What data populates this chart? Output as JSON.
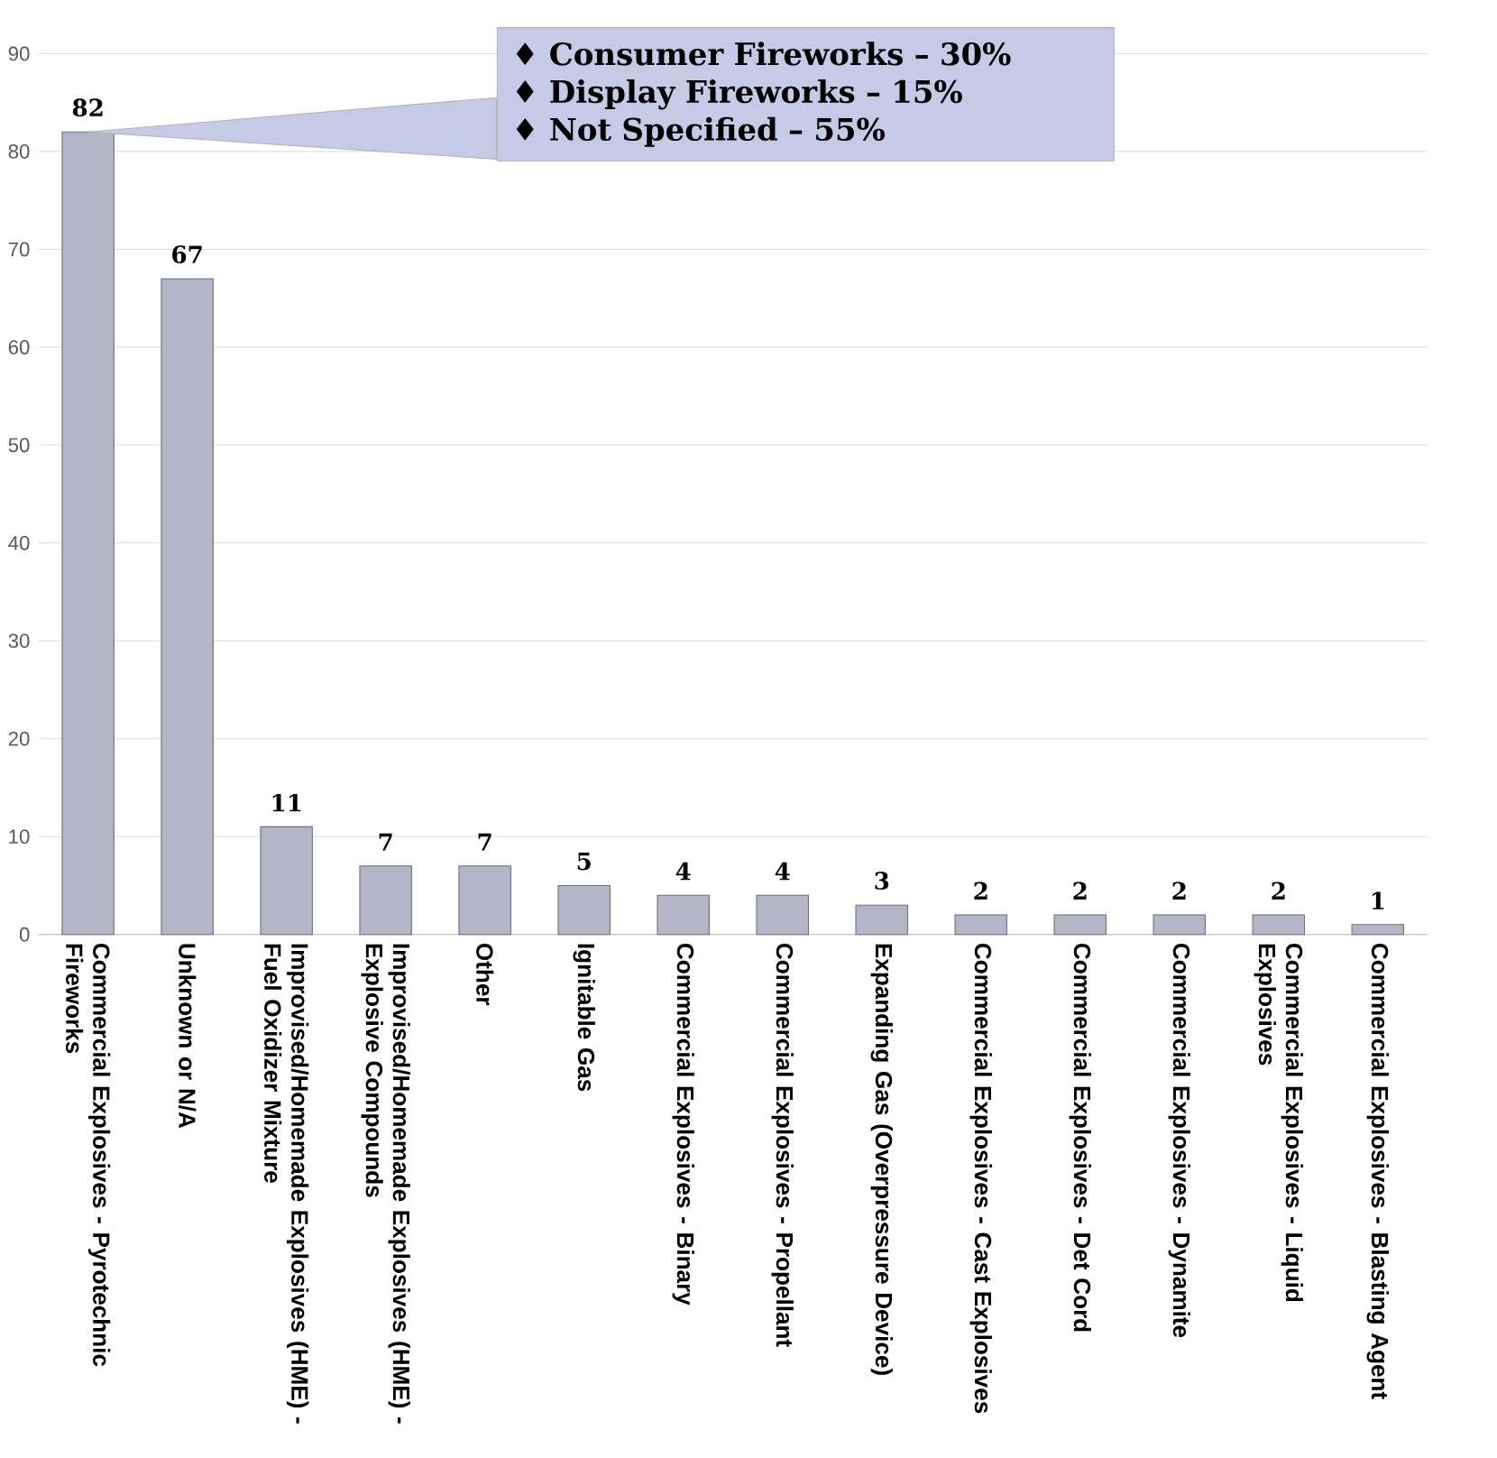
{
  "chart_data": {
    "type": "bar",
    "categories": [
      "Commercial Explosives - Pyrotechnic Fireworks",
      "Unknown or N/A",
      "Improvised/Homemade Explosives (HME) - Fuel Oxidizer Mixture",
      "Improvised/Homemade Explosives (HME) - Explosive Compounds",
      "Other",
      "Ignitable Gas",
      "Commercial Explosives - Binary",
      "Commercial Explosives - Propellant",
      "Expanding Gas (Overpressure Device)",
      "Commercial Explosives - Cast Explosives",
      "Commercial Explosives - Det Cord",
      "Commercial Explosives - Dynamite",
      "Commercial Explosives - Liquid Explosives",
      "Commercial Explosives - Blasting Agent"
    ],
    "values": [
      82,
      67,
      11,
      7,
      7,
      5,
      4,
      4,
      3,
      2,
      2,
      2,
      2,
      1
    ],
    "color": "#b4b6c8",
    "ylim": [
      0,
      90
    ],
    "yticks": [
      0,
      10,
      20,
      30,
      40,
      50,
      60,
      70,
      80,
      90
    ],
    "grid": "y",
    "data_labels": true,
    "annotations": [
      "♦ Consumer Fireworks – 30%",
      "♦ Display Fireworks – 15%",
      "♦ Not Specified – 55%"
    ]
  }
}
